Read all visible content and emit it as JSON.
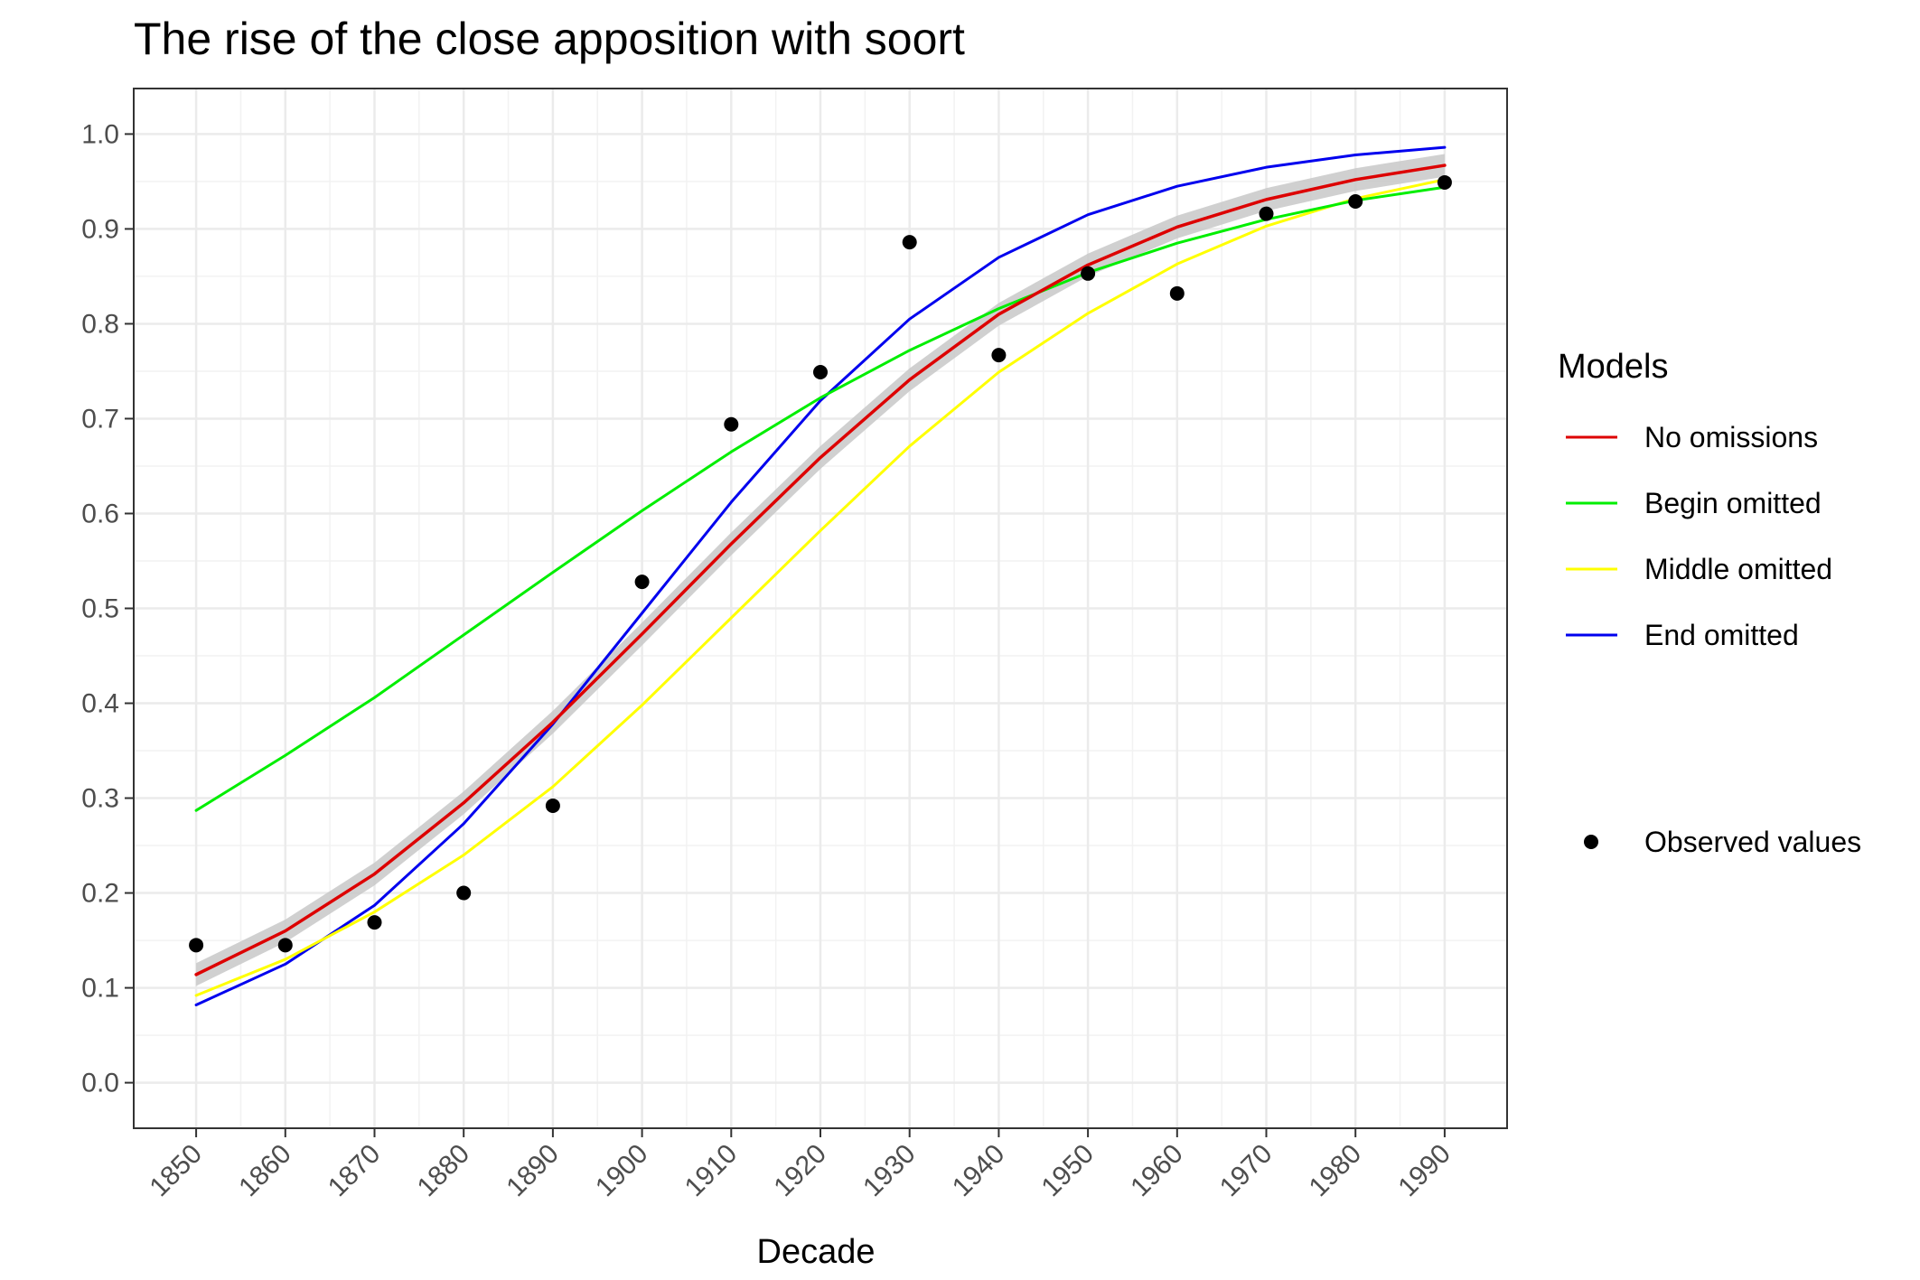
{
  "chart_data": {
    "type": "line",
    "title": "The rise of the close apposition with soort",
    "xlabel": "Decade",
    "ylabel": "",
    "x": [
      1850,
      1860,
      1870,
      1880,
      1890,
      1900,
      1910,
      1920,
      1930,
      1940,
      1950,
      1960,
      1970,
      1980,
      1990
    ],
    "xlim": [
      1843,
      1997
    ],
    "ylim": [
      -0.048,
      1.048
    ],
    "x_ticks": [
      "1850",
      "1860",
      "1870",
      "1880",
      "1890",
      "1900",
      "1910",
      "1920",
      "1930",
      "1940",
      "1950",
      "1960",
      "1970",
      "1980",
      "1990"
    ],
    "y_ticks": [
      "0.0",
      "0.1",
      "0.2",
      "0.3",
      "0.4",
      "0.5",
      "0.6",
      "0.7",
      "0.8",
      "0.9",
      "1.0"
    ],
    "grid": true,
    "legend_position": "right",
    "legend_title": "Models",
    "series": [
      {
        "name": "No omissions",
        "color": "#dd0000",
        "values": [
          0.114,
          0.16,
          0.22,
          0.295,
          0.38,
          0.473,
          0.568,
          0.659,
          0.741,
          0.81,
          0.862,
          0.902,
          0.931,
          0.952,
          0.967
        ],
        "ribbon": 0.012,
        "ribbon_color": "#c8c8c8"
      },
      {
        "name": "Begin omitted",
        "color": "#00ee00",
        "values": [
          0.287,
          0.345,
          0.406,
          0.472,
          0.538,
          0.603,
          0.665,
          0.722,
          0.772,
          0.816,
          0.854,
          0.885,
          0.91,
          0.93,
          0.944
        ]
      },
      {
        "name": "Middle omitted",
        "color": "#ffff00",
        "values": [
          0.092,
          0.13,
          0.18,
          0.24,
          0.312,
          0.398,
          0.49,
          0.582,
          0.671,
          0.749,
          0.811,
          0.863,
          0.903,
          0.932,
          0.952
        ]
      },
      {
        "name": "End omitted",
        "color": "#0000ee",
        "values": [
          0.082,
          0.125,
          0.187,
          0.273,
          0.378,
          0.495,
          0.612,
          0.719,
          0.805,
          0.87,
          0.915,
          0.945,
          0.965,
          0.978,
          0.986
        ]
      }
    ],
    "observed": {
      "name": "Observed values",
      "color": "#000000",
      "values": [
        0.145,
        0.145,
        0.169,
        0.2,
        0.292,
        0.528,
        0.694,
        0.749,
        0.886,
        0.767,
        0.853,
        0.832,
        0.916,
        0.929,
        0.949
      ]
    }
  }
}
